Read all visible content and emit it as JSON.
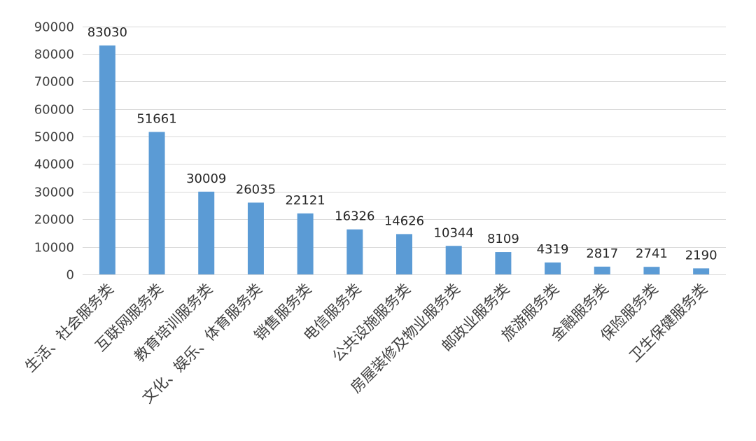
{
  "chart_data": {
    "type": "bar",
    "title": "",
    "xlabel": "",
    "ylabel": "",
    "categories": [
      "生活、社会服务类",
      "互联网服务类",
      "教育培训服务类",
      "文化、娱乐、体育服务类",
      "销售服务类",
      "电信服务类",
      "公共设施服务类",
      "房屋装修及物业服务类",
      "邮政业服务类",
      "旅游服务类",
      "金融服务类",
      "保险服务类",
      "卫生保健服务类"
    ],
    "values": [
      83030,
      51661,
      30009,
      26035,
      22121,
      16326,
      14626,
      10344,
      8109,
      4319,
      2817,
      2741,
      2190
    ],
    "ylim": [
      0,
      90000
    ],
    "yticks": [
      0,
      10000,
      20000,
      30000,
      40000,
      50000,
      60000,
      70000,
      80000,
      90000
    ],
    "grid": true,
    "legend": "none",
    "bar_color": "#5b9bd5",
    "grid_color": "#d9d9d9"
  }
}
